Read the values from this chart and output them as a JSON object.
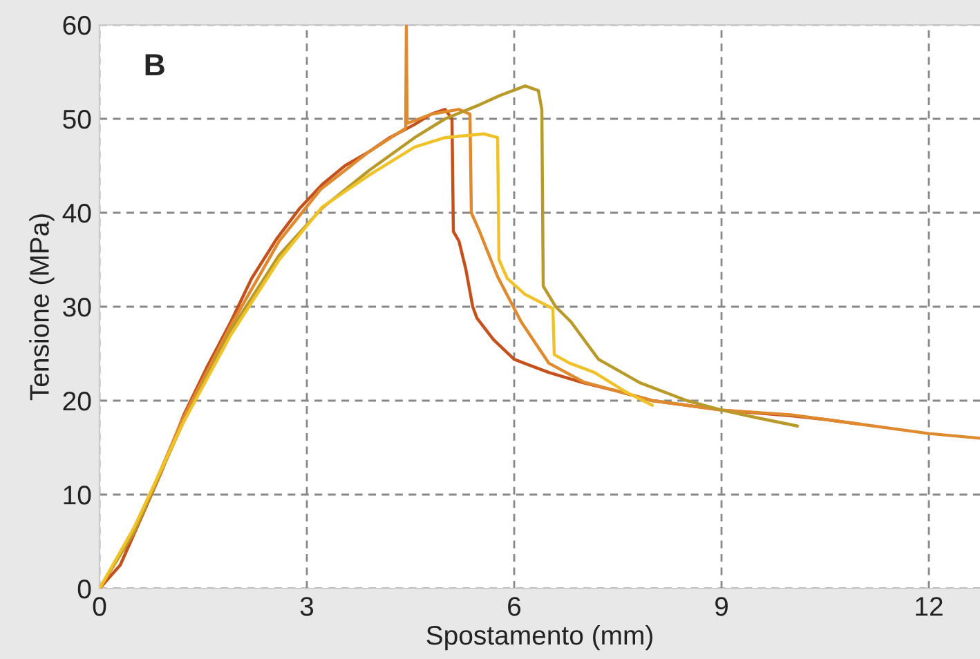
{
  "chart_data": {
    "type": "line",
    "xlabel": "Spostamento (mm)",
    "ylabel": "Tensione (MPa)",
    "annotations": [
      "B"
    ],
    "xlim": [
      0,
      12.74
    ],
    "ylim": [
      0,
      60
    ],
    "xticks": [
      0,
      3,
      6,
      9,
      12
    ],
    "yticks": [
      0,
      10,
      20,
      30,
      40,
      50,
      60
    ],
    "grid": true,
    "marker": "none",
    "line_style": "solid",
    "series": [
      {
        "color": "#c4501c",
        "x": [
          0,
          0.3,
          0.56,
          0.9,
          1.22,
          1.55,
          1.9,
          2.2,
          2.56,
          2.9,
          3.22,
          3.55,
          3.9,
          4.2,
          4.56,
          4.8,
          5.0,
          5.1,
          5.12,
          5.2,
          5.3,
          5.4,
          5.46,
          5.7,
          6.0,
          6.5,
          7.0,
          7.5,
          8.0,
          8.5,
          9.0,
          9.5,
          10.0,
          10.5,
          11.0
        ],
        "values": [
          0,
          2.5,
          6.8,
          12.5,
          18.5,
          23.5,
          28.4,
          33,
          37.2,
          40.5,
          43,
          45,
          46.5,
          48,
          49.4,
          50.5,
          51,
          50,
          38,
          37,
          34,
          30,
          28.8,
          26.5,
          24.4,
          23,
          21.9,
          21,
          20,
          19.5,
          19,
          18.7,
          18.4,
          18,
          17.5
        ]
      },
      {
        "color": "#e08a30",
        "x": [
          0,
          0.5,
          1.2,
          1.9,
          2.6,
          3.2,
          3.9,
          4.43,
          4.44,
          4.45,
          4.8,
          5.2,
          5.36,
          5.38,
          5.5,
          5.76,
          6.1,
          6.5,
          7.0,
          7.5,
          8.0,
          8.5,
          9.0,
          10.0,
          11.0,
          12.0,
          12.74
        ],
        "values": [
          0,
          6,
          18,
          28,
          37,
          42.5,
          46.5,
          49,
          60,
          49.5,
          50.5,
          51,
          50.5,
          40,
          38,
          33.2,
          28.4,
          24,
          22,
          21,
          20,
          19.5,
          19,
          18.5,
          17.5,
          16.5,
          16
        ]
      },
      {
        "color": "#b89a2a",
        "x": [
          0,
          0.5,
          1.2,
          1.9,
          2.6,
          3.22,
          3.9,
          4.56,
          5.0,
          5.5,
          5.8,
          6.16,
          6.35,
          6.4,
          6.42,
          6.6,
          6.82,
          7.22,
          7.82,
          8.5,
          9.0,
          9.5,
          10.1
        ],
        "values": [
          0,
          6,
          17.5,
          27.5,
          35.5,
          40.5,
          44.5,
          48,
          50,
          51.5,
          52.5,
          53.5,
          53,
          51,
          32.2,
          30,
          28.4,
          24.4,
          21.9,
          20,
          19,
          18.2,
          17.3
        ]
      },
      {
        "color": "#f0c22a",
        "x": [
          0,
          0.5,
          1.2,
          1.9,
          2.6,
          3.22,
          3.9,
          4.56,
          5.0,
          5.56,
          5.76,
          5.78,
          5.9,
          6.16,
          6.56,
          6.58,
          6.8,
          7.16,
          7.6,
          8.0
        ],
        "values": [
          0,
          6.5,
          17.5,
          27,
          35,
          40.6,
          44,
          47,
          48,
          48.4,
          48,
          35,
          33,
          31.3,
          29.8,
          24.9,
          24,
          23,
          21,
          19.5
        ]
      }
    ]
  }
}
